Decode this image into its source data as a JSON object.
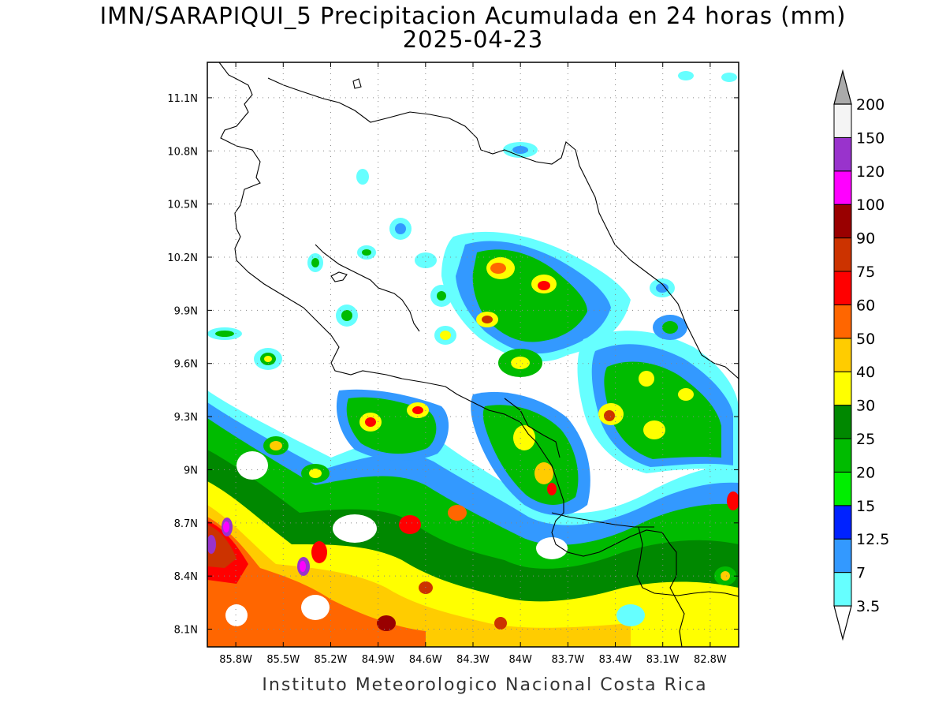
{
  "title": "IMN/SARAPIQUI_5 Precipitacion Acumulada en 24 horas (mm)",
  "date": "2025-04-23",
  "footer": "Instituto Meteorologico Nacional Costa Rica",
  "map": {
    "lon_range": [
      -85.98,
      -82.62
    ],
    "lat_range": [
      8.0,
      11.3
    ],
    "lon_ticks": [
      "85.8W",
      "85.5W",
      "85.2W",
      "84.9W",
      "84.6W",
      "84.3W",
      "84W",
      "83.7W",
      "83.4W",
      "83.1W",
      "82.8W"
    ],
    "lat_ticks": [
      "11.1N",
      "10.8N",
      "10.5N",
      "10.2N",
      "9.9N",
      "9.6N",
      "9.3N",
      "9N",
      "8.7N",
      "8.4N",
      "8.1N"
    ]
  },
  "colorbar": {
    "levels": [
      "3.5",
      "7",
      "12.5",
      "15",
      "20",
      "25",
      "30",
      "40",
      "50",
      "60",
      "75",
      "90",
      "100",
      "120",
      "150",
      "200"
    ],
    "colors": [
      "#66ffff",
      "#3399ff",
      "#0022ff",
      "#00ee00",
      "#00bb00",
      "#008800",
      "#ffff00",
      "#ffcc00",
      "#ff6600",
      "#ff0000",
      "#cc3300",
      "#990000",
      "#ff00ff",
      "#9933cc",
      "#f4f4f4",
      "#aaaaaa"
    ]
  }
}
